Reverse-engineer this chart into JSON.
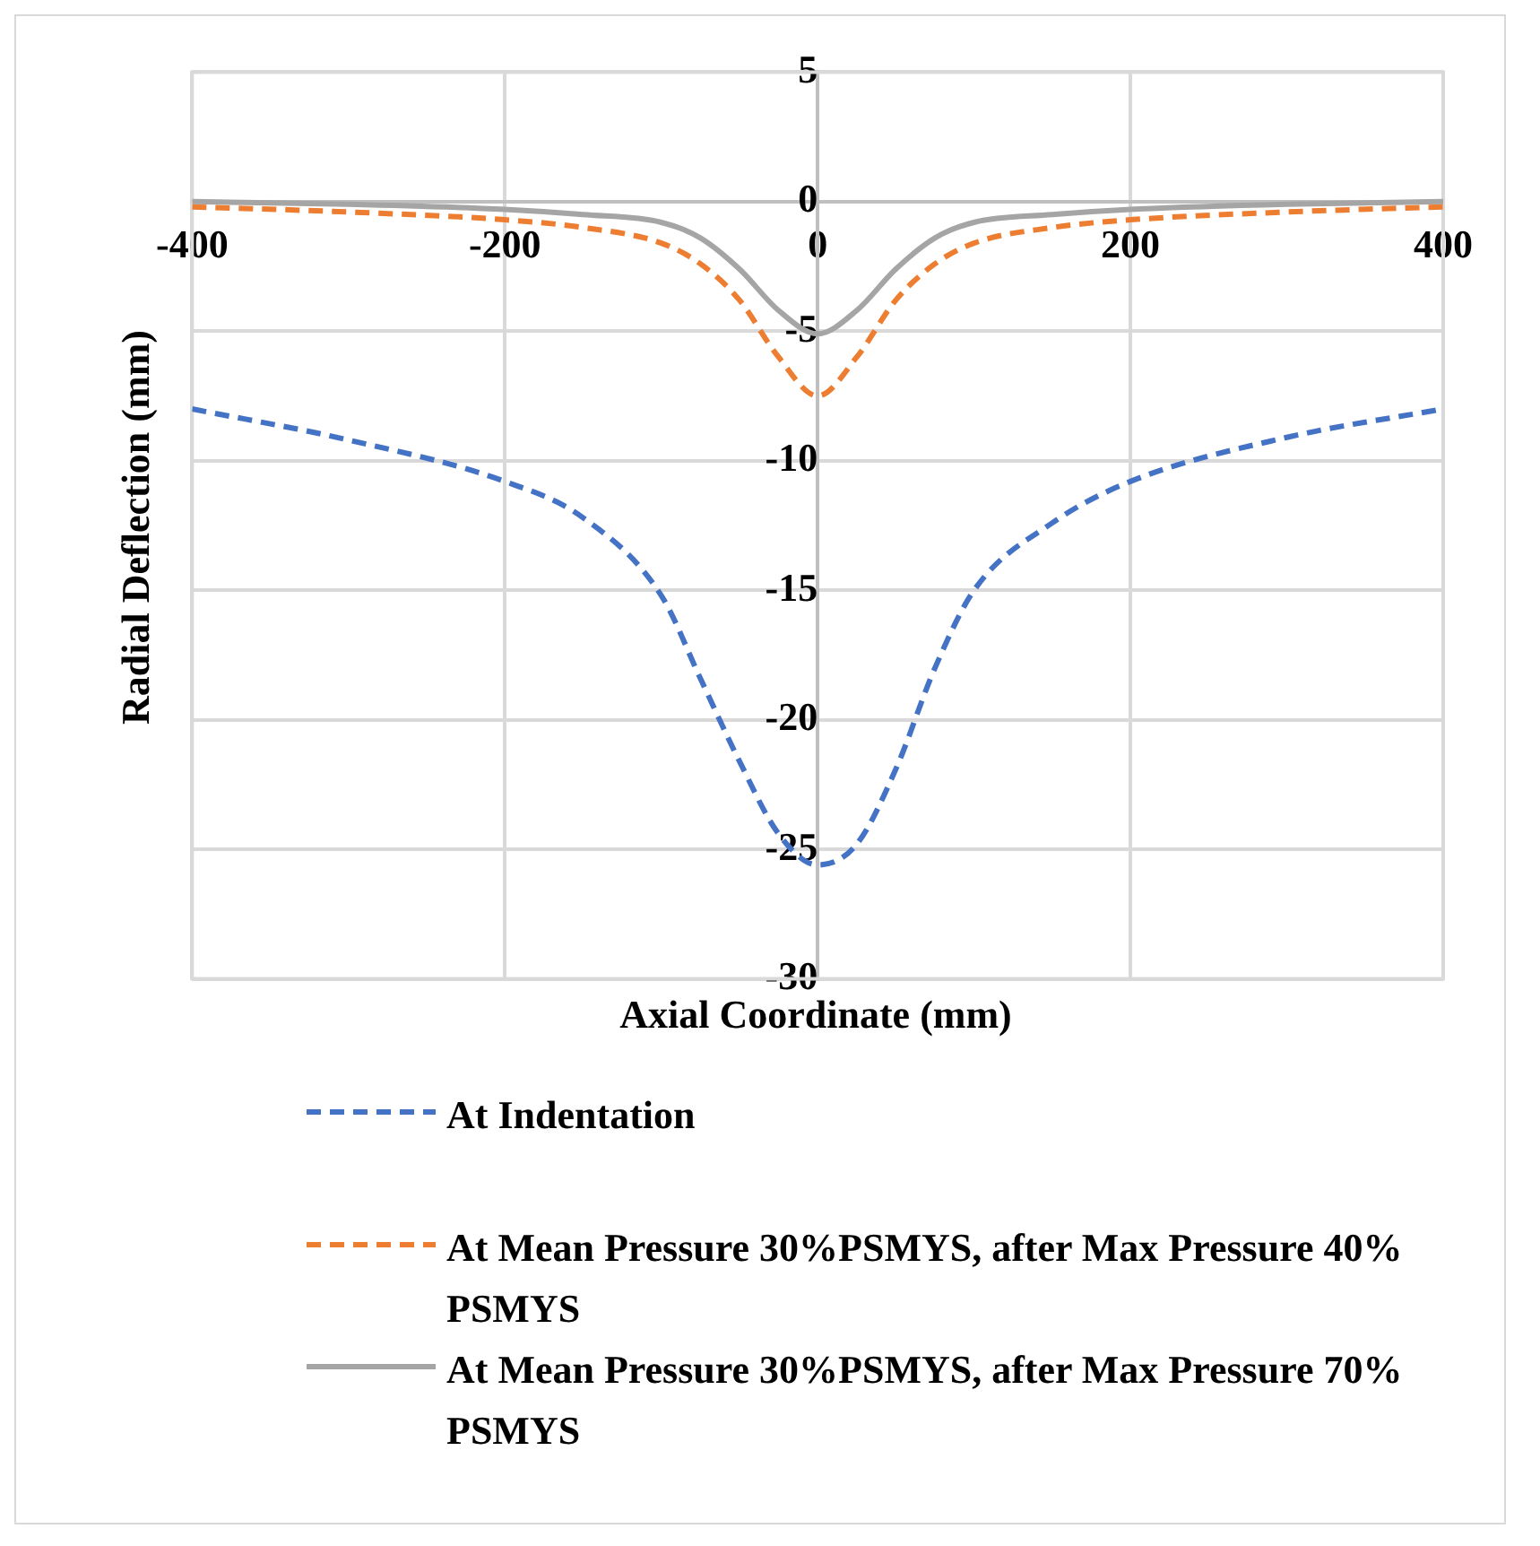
{
  "chart_data": {
    "type": "line",
    "xlabel": "Axial Coordinate (mm)",
    "ylabel": "Radial Deflection (mm)",
    "x": [
      -400,
      -300,
      -200,
      -150,
      -100,
      -75,
      -50,
      -25,
      0,
      25,
      50,
      75,
      100,
      150,
      200,
      300,
      400
    ],
    "series": [
      {
        "name": "At Indentation",
        "color": "#4472c4",
        "line_style": "dashed",
        "values": [
          -8.0,
          -9.2,
          -10.8,
          -12.2,
          -15.2,
          -18.4,
          -21.6,
          -24.4,
          -25.6,
          -24.8,
          -21.9,
          -18.0,
          -15.0,
          -12.4,
          -10.8,
          -9.1,
          -8.0
        ]
      },
      {
        "name": "At Mean Pressure 30%PSMYS, after Max Pressure 40% PSMYS",
        "color": "#ed7d31",
        "line_style": "dashed",
        "values": [
          -0.2,
          -0.4,
          -0.7,
          -1.0,
          -1.6,
          -2.4,
          -3.8,
          -6.0,
          -7.5,
          -6.0,
          -3.8,
          -2.4,
          -1.6,
          -1.0,
          -0.7,
          -0.4,
          -0.2
        ]
      },
      {
        "name": "At Mean Pressure 30%PSMYS, after Max Pressure 70% PSMYS",
        "color": "#a5a5a5",
        "line_style": "solid",
        "values": [
          0,
          -0.1,
          -0.3,
          -0.5,
          -0.8,
          -1.4,
          -2.6,
          -4.2,
          -5.1,
          -4.2,
          -2.6,
          -1.4,
          -0.8,
          -0.5,
          -0.3,
          -0.1,
          0
        ]
      }
    ],
    "xlim": [
      -400,
      400
    ],
    "xticks": [
      -400,
      -200,
      0,
      200,
      400
    ],
    "ylim": [
      -30,
      5
    ],
    "yticks": [
      -30,
      -25,
      -20,
      -15,
      -10,
      -5,
      0,
      5
    ],
    "grid": true,
    "legend": "bottom",
    "marker": "none"
  }
}
